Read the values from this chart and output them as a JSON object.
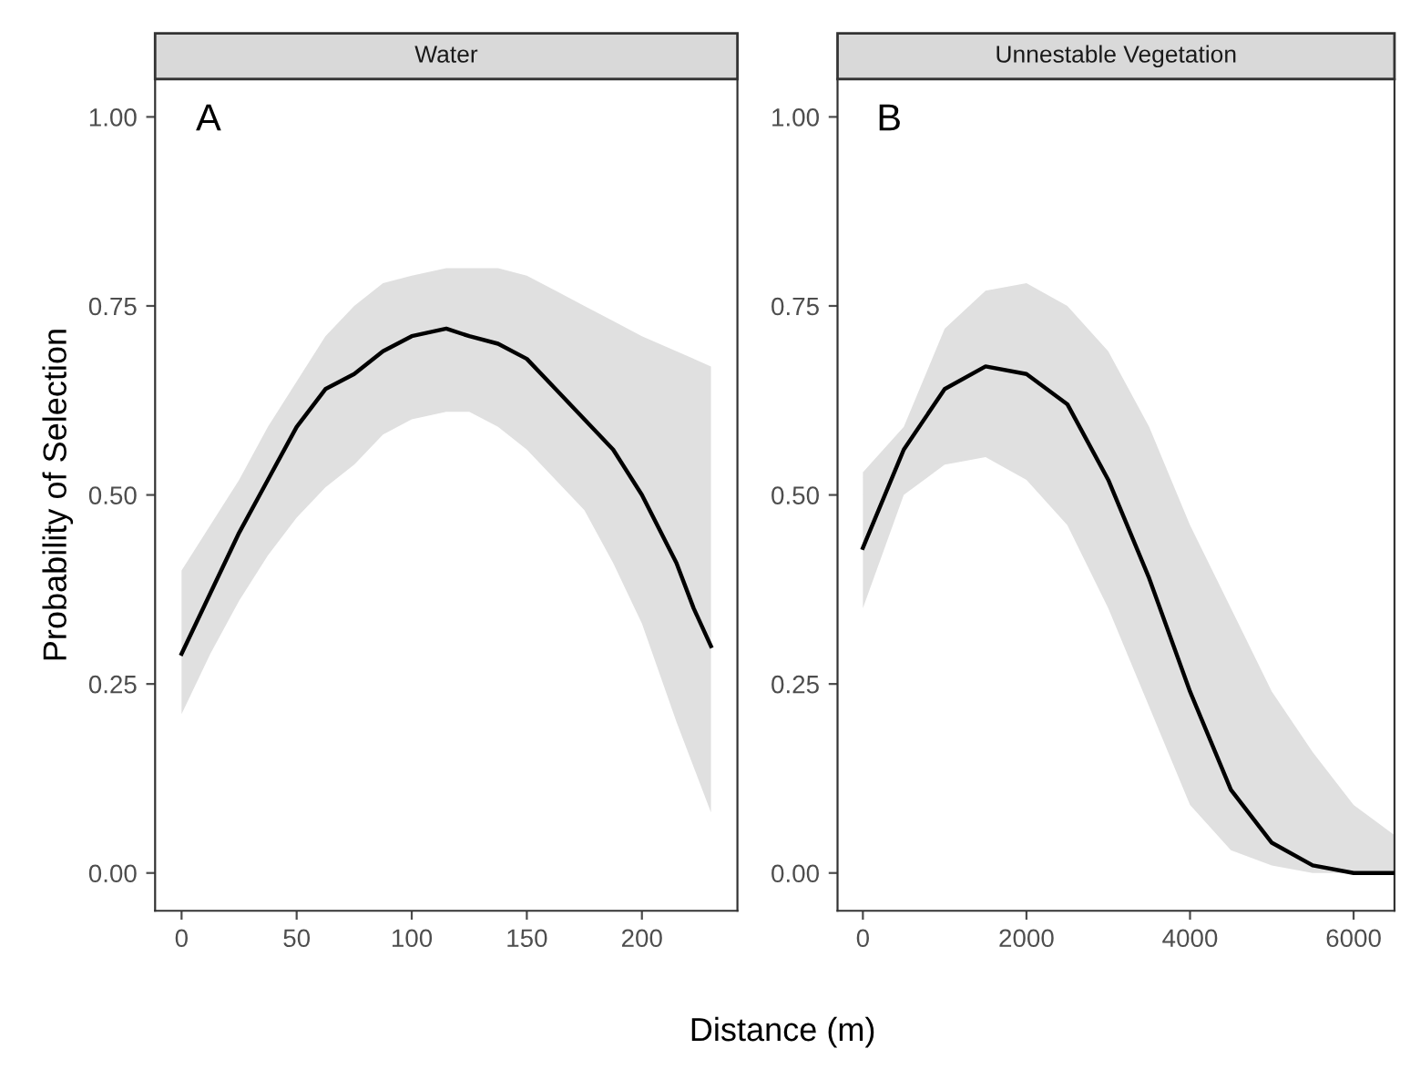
{
  "chart_data": [
    {
      "type": "line",
      "title": "Water",
      "ylabel": "Probability of Selection",
      "xlabel": "Distance (m)",
      "annotations": [
        "A"
      ],
      "xlim": [
        -11.5,
        241.5
      ],
      "xticks": [
        0,
        50,
        100,
        150,
        200
      ],
      "ylim": [
        -0.05,
        1.05
      ],
      "yticks": [
        {
          "value": 0,
          "label": "0.00"
        },
        {
          "value": 0.25,
          "label": "0.25"
        },
        {
          "value": 0.5,
          "label": "0.50"
        },
        {
          "value": 0.75,
          "label": "0.75"
        },
        {
          "value": 1,
          "label": "1.00"
        }
      ],
      "grid": false,
      "marker": "none",
      "line_style": "solid",
      "series": [
        {
          "color": "#000000",
          "x": [
            0,
            12.5,
            25,
            37.5,
            50,
            62.5,
            75,
            87.5,
            100,
            115,
            125,
            137.5,
            150,
            162.5,
            175,
            187.5,
            200,
            215,
            222.5,
            230
          ],
          "values": [
            0.29,
            0.37,
            0.45,
            0.52,
            0.59,
            0.64,
            0.66,
            0.69,
            0.71,
            0.72,
            0.71,
            0.7,
            0.68,
            0.64,
            0.6,
            0.56,
            0.5,
            0.41,
            0.35,
            0.3
          ],
          "lower": [
            0.21,
            0.29,
            0.36,
            0.42,
            0.47,
            0.51,
            0.54,
            0.58,
            0.6,
            0.61,
            0.61,
            0.59,
            0.56,
            0.52,
            0.48,
            0.41,
            0.33,
            0.2,
            0.14,
            0.08
          ],
          "upper": [
            0.4,
            0.46,
            0.52,
            0.59,
            0.65,
            0.71,
            0.75,
            0.78,
            0.79,
            0.8,
            0.8,
            0.8,
            0.79,
            0.77,
            0.75,
            0.73,
            0.71,
            0.69,
            0.68,
            0.67
          ]
        }
      ]
    },
    {
      "type": "line",
      "title": "Unnestable Vegetation",
      "annotations": [
        "B"
      ],
      "xlim": [
        -310,
        6500
      ],
      "xticks": [
        0,
        2000,
        4000,
        6000
      ],
      "ylim": [
        -0.05,
        1.05
      ],
      "yticks": [
        {
          "value": 0,
          "label": "0.00"
        },
        {
          "value": 0.25,
          "label": "0.25"
        },
        {
          "value": 0.5,
          "label": "0.50"
        },
        {
          "value": 0.75,
          "label": "0.75"
        },
        {
          "value": 1,
          "label": "1.00"
        }
      ],
      "grid": false,
      "marker": "none",
      "line_style": "solid",
      "series": [
        {
          "color": "#000000",
          "x": [
            0,
            500,
            1000,
            1500,
            2000,
            2500,
            3000,
            3500,
            4000,
            4500,
            5000,
            5500,
            6000,
            6500
          ],
          "values": [
            0.43,
            0.56,
            0.64,
            0.67,
            0.66,
            0.62,
            0.52,
            0.39,
            0.24,
            0.11,
            0.04,
            0.01,
            0.0,
            0.0
          ],
          "lower": [
            0.35,
            0.5,
            0.54,
            0.55,
            0.52,
            0.46,
            0.35,
            0.22,
            0.09,
            0.03,
            0.01,
            0.0,
            0.0,
            0.0
          ],
          "upper": [
            0.53,
            0.59,
            0.72,
            0.77,
            0.78,
            0.75,
            0.69,
            0.59,
            0.46,
            0.35,
            0.24,
            0.16,
            0.09,
            0.05
          ]
        }
      ]
    }
  ]
}
